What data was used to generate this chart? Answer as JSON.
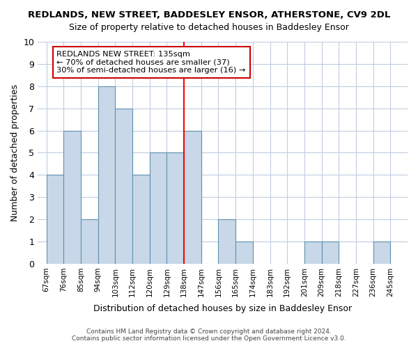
{
  "title": "REDLANDS, NEW STREET, BADDESLEY ENSOR, ATHERSTONE, CV9 2DL",
  "subtitle": "Size of property relative to detached houses in Baddesley Ensor",
  "xlabel": "Distribution of detached houses by size in Baddesley Ensor",
  "ylabel": "Number of detached properties",
  "bin_labels": [
    "67sqm",
    "76sqm",
    "85sqm",
    "94sqm",
    "103sqm",
    "112sqm",
    "120sqm",
    "129sqm",
    "138sqm",
    "147sqm",
    "156sqm",
    "165sqm",
    "174sqm",
    "183sqm",
    "192sqm",
    "201sqm",
    "209sqm",
    "218sqm",
    "227sqm",
    "236sqm",
    "245sqm"
  ],
  "bar_values": [
    4,
    6,
    2,
    8,
    7,
    4,
    5,
    5,
    6,
    0,
    2,
    1,
    0,
    0,
    0,
    1,
    1,
    0,
    0,
    1,
    0
  ],
  "bar_color": "#c8d8e8",
  "bar_edge_color": "#6090b0",
  "red_line_index": 8,
  "annotation_title": "REDLANDS NEW STREET: 135sqm",
  "annotation_line1": "← 70% of detached houses are smaller (37)",
  "annotation_line2": "30% of semi-detached houses are larger (16) →",
  "annotation_box_color": "#ffffff",
  "annotation_box_edge": "#cc0000",
  "footer_line1": "Contains HM Land Registry data © Crown copyright and database right 2024.",
  "footer_line2": "Contains public sector information licensed under the Open Government Licence v3.0.",
  "ylim": [
    0,
    10
  ],
  "background_color": "#ffffff",
  "grid_color": "#c0cce0"
}
